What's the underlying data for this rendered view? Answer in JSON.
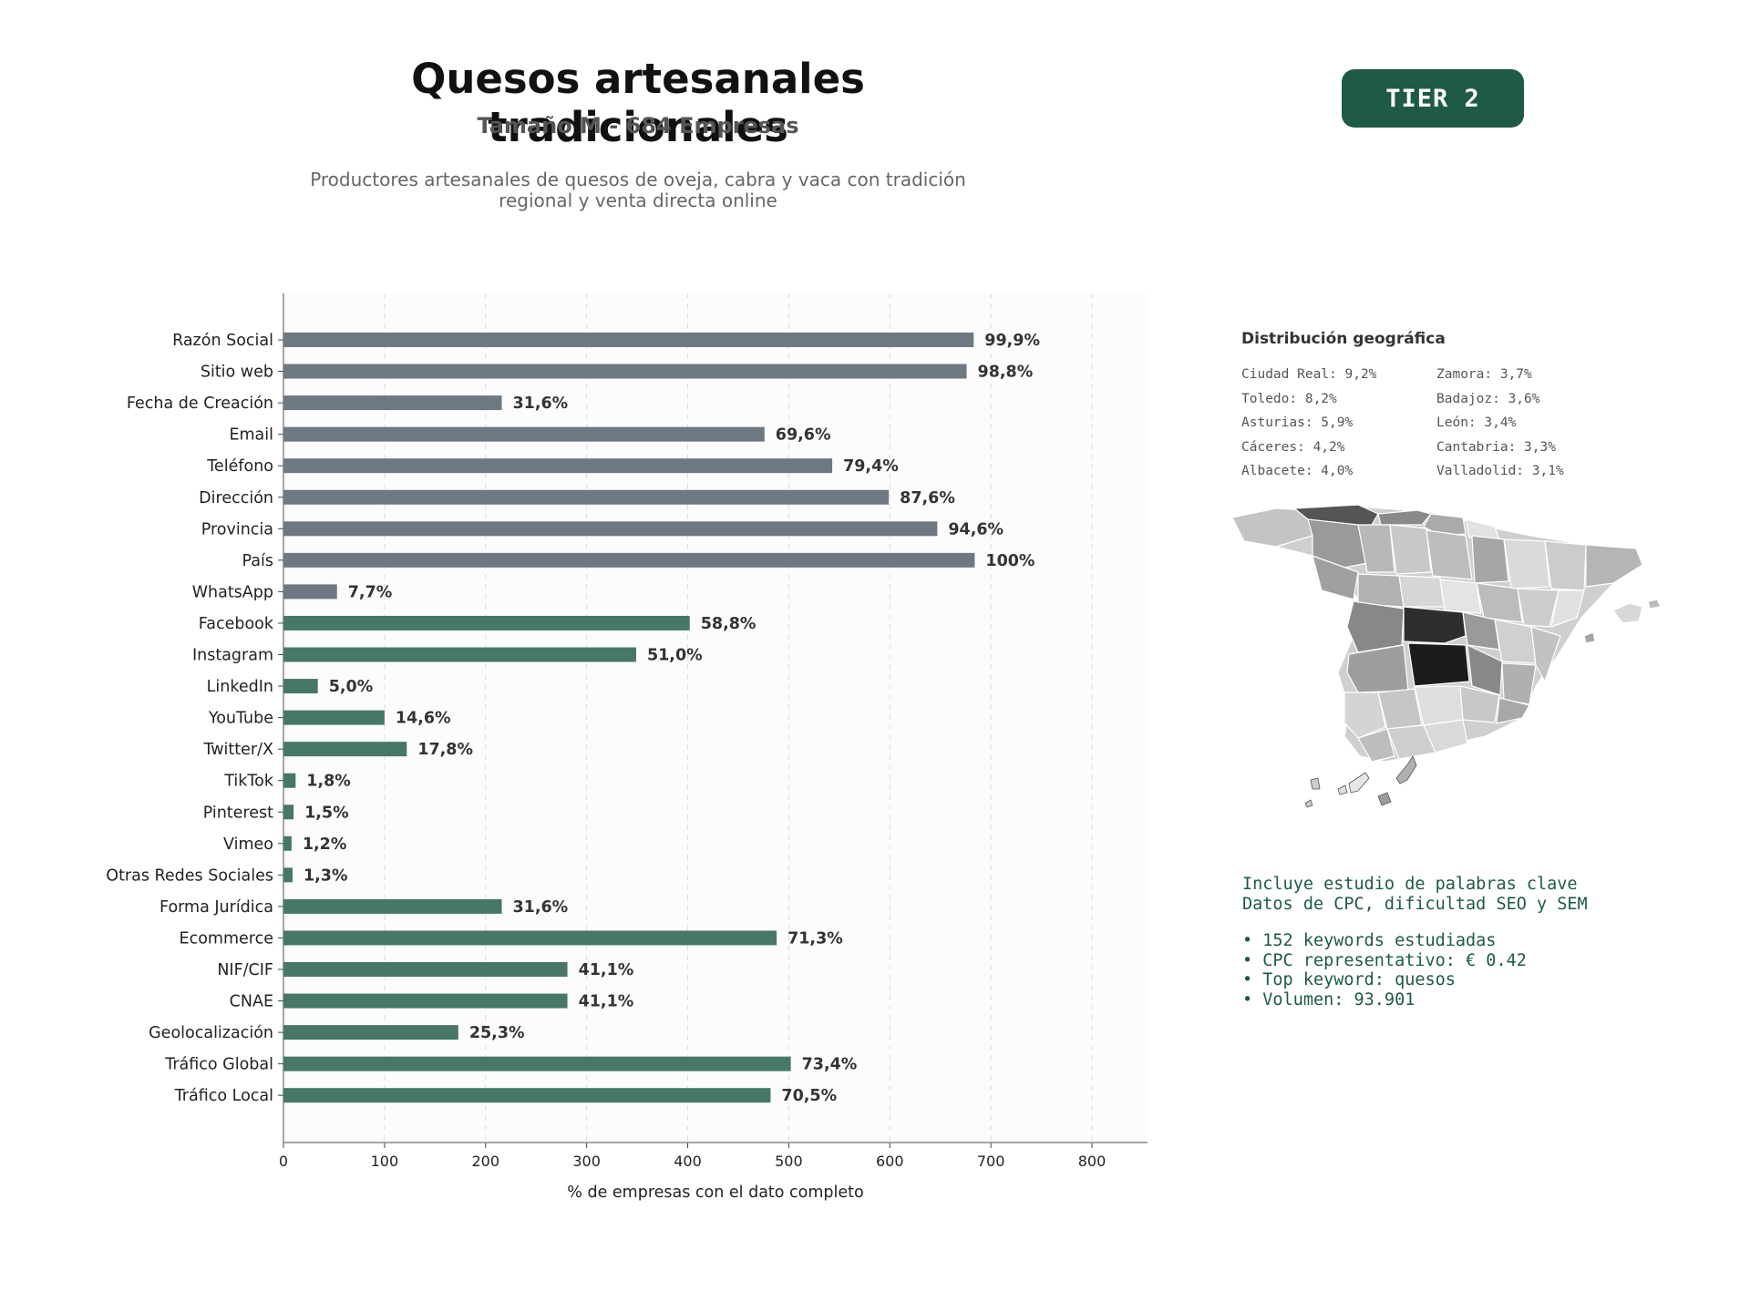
{
  "header": {
    "title": "Quesos artesanales tradicionales",
    "subtitle": "Tamaño M - 684 Empresas",
    "description": "Productores artesanales de quesos de oveja, cabra y vaca con tradición regional y venta directa online",
    "tier": "TIER 2"
  },
  "colors": {
    "gray_bar": "#6e7882",
    "green_bar": "#477766",
    "accent": "#1e5a44",
    "plot_bg": "#fcfcfc"
  },
  "chart_data": {
    "type": "bar",
    "orientation": "horizontal",
    "xlabel": "% de empresas con el dato completo",
    "xlim": [
      0,
      855
    ],
    "xticks": [
      0,
      100,
      200,
      300,
      400,
      500,
      600,
      700,
      800
    ],
    "grid": "x, dashed",
    "categories": [
      "Razón Social",
      "Sitio web",
      "Fecha de Creación",
      "Email",
      "Teléfono",
      "Dirección",
      "Provincia",
      "País",
      "WhatsApp",
      "Facebook",
      "Instagram",
      "LinkedIn",
      "YouTube",
      "Twitter/X",
      "TikTok",
      "Pinterest",
      "Vimeo",
      "Otras Redes Sociales",
      "Forma Jurídica",
      "Ecommerce",
      "NIF/CIF",
      "CNAE",
      "Geolocalización",
      "Tráfico Global",
      "Tráfico Local"
    ],
    "values": [
      683,
      676,
      216,
      476,
      543,
      599,
      647,
      684,
      53,
      402,
      349,
      34,
      100,
      122,
      12,
      10,
      8,
      9,
      216,
      488,
      281,
      281,
      173,
      502,
      482
    ],
    "labels": [
      "99,9%",
      "98,8%",
      "31,6%",
      "69,6%",
      "79,4%",
      "87,6%",
      "94,6%",
      "100%",
      "7,7%",
      "58,8%",
      "51,0%",
      "5,0%",
      "14,6%",
      "17,8%",
      "1,8%",
      "1,5%",
      "1,2%",
      "1,3%",
      "31,6%",
      "71,3%",
      "41,1%",
      "41,1%",
      "25,3%",
      "73,4%",
      "70,5%"
    ],
    "bar_groups": [
      "gray",
      "gray",
      "gray",
      "gray",
      "gray",
      "gray",
      "gray",
      "gray",
      "gray",
      "green",
      "green",
      "green",
      "green",
      "green",
      "green",
      "green",
      "green",
      "green",
      "green",
      "green",
      "green",
      "green",
      "green",
      "green",
      "green"
    ]
  },
  "geo": {
    "title": "Distribución geográfica",
    "left": [
      "Ciudad Real: 9,2%",
      "Toledo: 8,2%",
      "Asturias: 5,9%",
      "Cáceres: 4,2%",
      "Albacete: 4,0%"
    ],
    "right": [
      "Zamora: 3,7%",
      "Badajoz: 3,6%",
      "León: 3,4%",
      "Cantabria: 3,3%",
      "Valladolid: 3,1%"
    ]
  },
  "keywords": {
    "intro": [
      "Incluye estudio de palabras clave",
      "Datos de CPC, dificultad SEO y SEM"
    ],
    "items": [
      "• 152 keywords estudiadas",
      "• CPC representativo: € 0.42",
      "• Top keyword: quesos",
      "• Volumen: 93.901"
    ]
  }
}
